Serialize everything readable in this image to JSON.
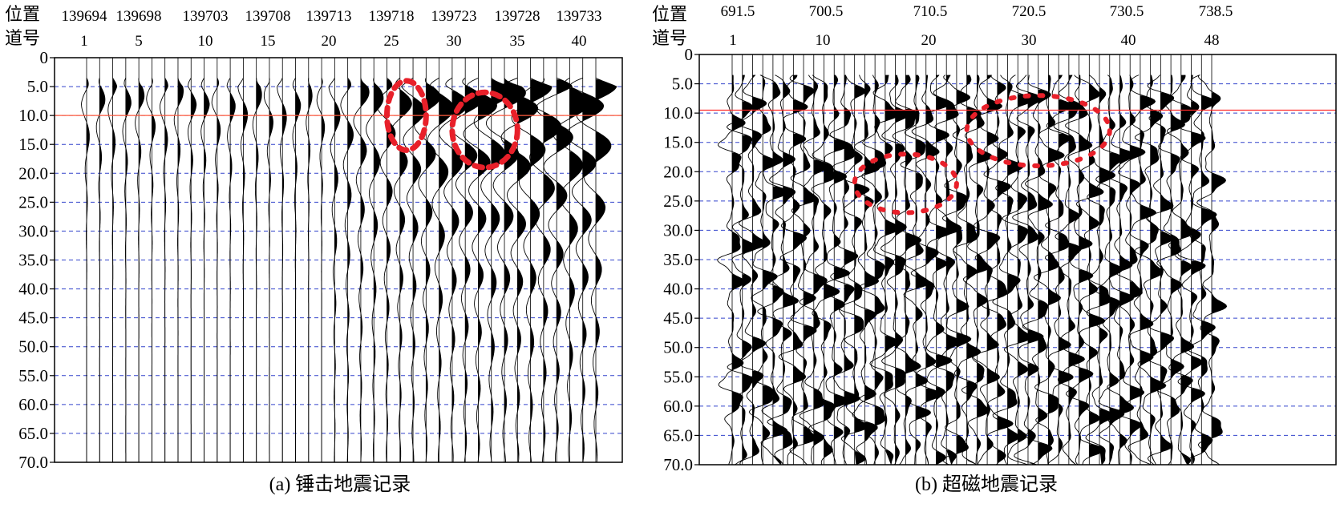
{
  "chart_data": [
    {
      "type": "line",
      "panel": "a",
      "caption": "(a) 锤击地震记录",
      "row_label_position": "位置",
      "row_label_trace": "道号",
      "position_labels": [
        "139694",
        "139698",
        "139703",
        "139708",
        "139713",
        "139718",
        "139723",
        "139728",
        "139733"
      ],
      "trace_labels": [
        "1",
        "5",
        "10",
        "15",
        "20",
        "25",
        "30",
        "35",
        "40"
      ],
      "trace_count": 40,
      "y_ticks": [
        "0",
        "5.0",
        "10.0",
        "15.0",
        "20.0",
        "25.0",
        "30.0",
        "35.0",
        "40.0",
        "45.0",
        "50.0",
        "55.0",
        "60.0",
        "65.0",
        "70.0"
      ],
      "ylim": [
        0,
        70
      ],
      "y_inverted": true,
      "gridlines": "dashed blue at every 5.0",
      "reference_line": 10.0,
      "highlighted_regions": [
        {
          "trace_range": [
            24,
            27
          ],
          "time_range": [
            4,
            16
          ]
        },
        {
          "trace_range": [
            29,
            34
          ],
          "time_range": [
            6,
            19
          ]
        }
      ],
      "colors": {
        "trace": "#000000",
        "grid": "#3344cc",
        "reference": "#ff5a3c",
        "highlight": "#e8202a"
      }
    },
    {
      "type": "line",
      "panel": "b",
      "caption": "(b) 超磁地震记录",
      "row_label_position": "位置",
      "row_label_trace": "道号",
      "position_labels": [
        "691.5",
        "700.5",
        "710.5",
        "720.5",
        "730.5",
        "738.5"
      ],
      "trace_labels": [
        "1",
        "10",
        "20",
        "30",
        "40",
        "48"
      ],
      "trace_count": 48,
      "y_ticks": [
        "0",
        "5.0",
        "10.0",
        "15.0",
        "20.0",
        "25.0",
        "30.0",
        "35.0",
        "40.0",
        "45.0",
        "50.0",
        "55.0",
        "60.0",
        "65.0",
        "70.0"
      ],
      "ylim": [
        0,
        70
      ],
      "y_inverted": true,
      "gridlines": "dashed blue at every 5.0",
      "reference_line": 9.5,
      "highlighted_regions": [
        {
          "trace_range": [
            13,
            23
          ],
          "time_range": [
            17,
            27
          ]
        },
        {
          "trace_range": [
            24,
            38
          ],
          "time_range": [
            7,
            19
          ]
        }
      ],
      "colors": {
        "trace": "#000000",
        "grid": "#3344cc",
        "reference": "#ff2a2a",
        "highlight": "#e8202a"
      }
    }
  ]
}
